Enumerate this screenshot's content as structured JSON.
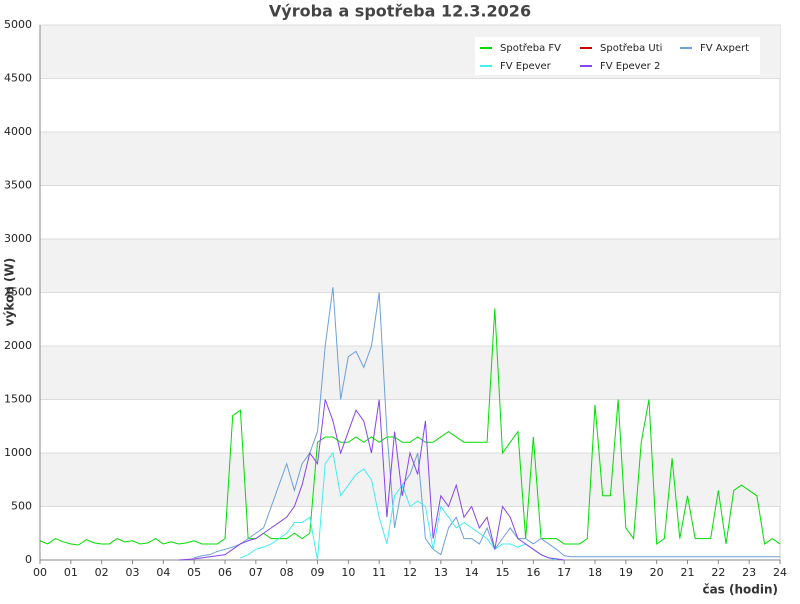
{
  "chart_data": {
    "type": "line",
    "title": "Výroba a spotřeba 12.3.2026",
    "x_label": "čas (hodin)",
    "y_label": "výkon (W)",
    "xlim": [
      0,
      24
    ],
    "ylim": [
      0,
      5000
    ],
    "yticks": [
      0,
      500,
      1000,
      1500,
      2000,
      2500,
      3000,
      3500,
      4000,
      4500,
      5000
    ],
    "xticks": [
      {
        "value": 0,
        "label": "00"
      },
      {
        "value": 1,
        "label": "01"
      },
      {
        "value": 2,
        "label": "02"
      },
      {
        "value": 3,
        "label": "03"
      },
      {
        "value": 4,
        "label": "04"
      },
      {
        "value": 5,
        "label": "05"
      },
      {
        "value": 6,
        "label": "06"
      },
      {
        "value": 7,
        "label": "07"
      },
      {
        "value": 8,
        "label": "08"
      },
      {
        "value": 9,
        "label": "09"
      },
      {
        "value": 10,
        "label": "10"
      },
      {
        "value": 11,
        "label": "11"
      },
      {
        "value": 12,
        "label": "12"
      },
      {
        "value": 13,
        "label": "13"
      },
      {
        "value": 14,
        "label": "14"
      },
      {
        "value": 15,
        "label": "15"
      },
      {
        "value": 16,
        "label": "16"
      },
      {
        "value": 17,
        "label": "17"
      },
      {
        "value": 18,
        "label": "18"
      },
      {
        "value": 19,
        "label": "19"
      },
      {
        "value": 20,
        "label": "20"
      },
      {
        "value": 21,
        "label": "21"
      },
      {
        "value": 22,
        "label": "22"
      },
      {
        "value": 23,
        "label": "23"
      },
      {
        "value": 24,
        "label": "24"
      }
    ],
    "grid": true,
    "legend": "upper right",
    "x": [
      0,
      0.25,
      0.5,
      0.75,
      1,
      1.25,
      1.5,
      1.75,
      2,
      2.25,
      2.5,
      2.75,
      3,
      3.25,
      3.5,
      3.75,
      4,
      4.25,
      4.5,
      4.75,
      5,
      5.25,
      5.5,
      5.75,
      6,
      6.25,
      6.5,
      6.75,
      7,
      7.25,
      7.5,
      7.75,
      8,
      8.25,
      8.5,
      8.75,
      9,
      9.25,
      9.5,
      9.75,
      10,
      10.25,
      10.5,
      10.75,
      11,
      11.25,
      11.5,
      11.75,
      12,
      12.25,
      12.5,
      12.75,
      13,
      13.25,
      13.5,
      13.75,
      14,
      14.25,
      14.5,
      14.75,
      15,
      15.25,
      15.5,
      15.75,
      16,
      16.25,
      16.5,
      16.75,
      17,
      17.25,
      17.5,
      17.75,
      18,
      18.25,
      18.5,
      18.75,
      19,
      19.25,
      19.5,
      19.75,
      20,
      20.25,
      20.5,
      20.75,
      21,
      21.25,
      21.5,
      21.75,
      22,
      22.25,
      22.5,
      22.75,
      23,
      23.25,
      23.5,
      23.75,
      24
    ],
    "series": [
      {
        "name": "Spotřeba FV",
        "color": "#00dd00",
        "values": [
          180,
          150,
          200,
          170,
          150,
          140,
          190,
          160,
          150,
          150,
          200,
          170,
          180,
          150,
          160,
          200,
          150,
          170,
          150,
          160,
          180,
          150,
          150,
          150,
          200,
          1350,
          1400,
          200,
          200,
          250,
          200,
          200,
          200,
          250,
          200,
          250,
          1100,
          1150,
          1150,
          1100,
          1100,
          1150,
          1100,
          1150,
          1100,
          1150,
          1150,
          1100,
          1100,
          1150,
          1100,
          1100,
          1150,
          1200,
          1150,
          1100,
          1100,
          1100,
          1100,
          2350,
          1000,
          1100,
          1200,
          200,
          1150,
          200,
          200,
          200,
          150,
          150,
          150,
          200,
          1450,
          600,
          600,
          1500,
          300,
          200,
          1100,
          1500,
          150,
          200,
          950,
          200,
          600,
          200,
          200,
          200,
          650,
          150,
          650,
          700,
          650,
          600,
          150,
          200,
          150
        ]
      },
      {
        "name": "Spotřeba Uti",
        "color": "#cc0000",
        "values": [
          null,
          null,
          null,
          null,
          null,
          null,
          null,
          null,
          null,
          null,
          null,
          null,
          null,
          null,
          null,
          null,
          null,
          null,
          null,
          null,
          null,
          null,
          null,
          null,
          null,
          null,
          null,
          null,
          null,
          null,
          null,
          null,
          null,
          null,
          null,
          null,
          null,
          null,
          null,
          null,
          null,
          null,
          null,
          null,
          null,
          null,
          null,
          null,
          null,
          null,
          null,
          null,
          null,
          null,
          null,
          null,
          null,
          null,
          null,
          null,
          null,
          null,
          null,
          null,
          null,
          null,
          null,
          null,
          null,
          null,
          null,
          null,
          null,
          null,
          null,
          null,
          null,
          null,
          null,
          null,
          null,
          null,
          null,
          null,
          null,
          null,
          null,
          null,
          null,
          null,
          null,
          null,
          null,
          null,
          null,
          null,
          null
        ]
      },
      {
        "name": "FV Axpert",
        "color": "#6f9fd8",
        "values": [
          null,
          null,
          null,
          null,
          null,
          null,
          null,
          null,
          null,
          null,
          null,
          null,
          null,
          null,
          null,
          null,
          null,
          null,
          null,
          null,
          20,
          40,
          50,
          80,
          100,
          120,
          150,
          200,
          250,
          300,
          500,
          700,
          900,
          650,
          900,
          1000,
          1200,
          2000,
          2550,
          1500,
          1900,
          1950,
          1800,
          2000,
          2500,
          1200,
          300,
          700,
          800,
          1000,
          200,
          100,
          50,
          300,
          400,
          200,
          200,
          150,
          300,
          100,
          200,
          300,
          200,
          200,
          150,
          200,
          150,
          100,
          40,
          30,
          30,
          30,
          30,
          30,
          30,
          30,
          30,
          30,
          30,
          30,
          30,
          30,
          30,
          30,
          30,
          30,
          30,
          30,
          30,
          30,
          30,
          30,
          30,
          30,
          30,
          30,
          30
        ]
      },
      {
        "name": "FV Epever",
        "color": "#44eeee",
        "values": [
          null,
          null,
          null,
          null,
          null,
          null,
          null,
          null,
          null,
          null,
          null,
          null,
          null,
          null,
          null,
          null,
          null,
          null,
          null,
          null,
          null,
          null,
          null,
          null,
          null,
          null,
          20,
          50,
          100,
          120,
          150,
          200,
          250,
          350,
          350,
          400,
          0,
          900,
          1000,
          600,
          700,
          800,
          850,
          750,
          400,
          150,
          600,
          700,
          500,
          550,
          500,
          100,
          500,
          400,
          300,
          350,
          300,
          250,
          200,
          100,
          150,
          150,
          120,
          150,
          100,
          50,
          20,
          0,
          null,
          null,
          null,
          null,
          null,
          null,
          null,
          null,
          null,
          null,
          null,
          null,
          null,
          null,
          null,
          null,
          null,
          null,
          null,
          null,
          null,
          null,
          null,
          null,
          null,
          null,
          null,
          null,
          null
        ]
      },
      {
        "name": "FV Epever 2",
        "color": "#8844ee",
        "values": [
          null,
          null,
          null,
          null,
          null,
          null,
          null,
          null,
          null,
          null,
          null,
          null,
          null,
          null,
          null,
          null,
          null,
          null,
          0,
          5,
          10,
          20,
          30,
          40,
          50,
          100,
          150,
          180,
          200,
          250,
          300,
          350,
          400,
          500,
          700,
          1000,
          900,
          1500,
          1300,
          1000,
          1200,
          1400,
          1300,
          1000,
          1500,
          400,
          1200,
          600,
          1000,
          800,
          1300,
          200,
          600,
          500,
          700,
          400,
          500,
          300,
          400,
          100,
          500,
          400,
          200,
          150,
          100,
          50,
          20,
          10,
          0,
          null,
          null,
          null,
          null,
          null,
          null,
          null,
          null,
          null,
          null,
          null,
          null,
          null,
          null,
          null,
          null,
          null,
          null,
          null,
          null,
          null,
          null,
          null,
          null,
          null,
          null,
          null,
          null
        ]
      }
    ]
  }
}
